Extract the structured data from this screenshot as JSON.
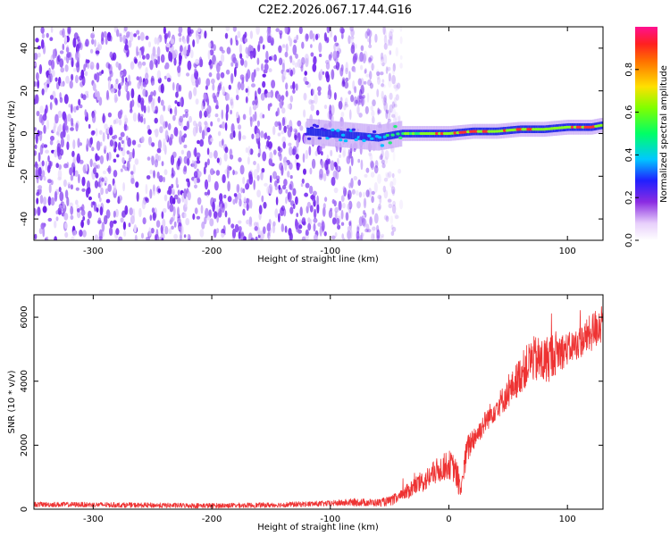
{
  "title": "C2E2.2026.067.17.44.G16",
  "colors": {
    "snr_line": "#ee3333",
    "axis": "#000000",
    "spectrogram_scatter": "#7a30f0",
    "spectrogram_band_core": "#33ee66",
    "spectrogram_band_peak": "#ff3333"
  },
  "chart_data": [
    {
      "type": "heatmap",
      "title": "",
      "xlabel": "Height of straight line (km)",
      "ylabel": "Frequency (Hz)",
      "xlim": [
        -350,
        130
      ],
      "ylim": [
        -50,
        50
      ],
      "x_ticks": [
        -300,
        -200,
        -100,
        0,
        100
      ],
      "x_tick_labels": [
        "-300",
        "-200",
        "-100",
        "0",
        "100"
      ],
      "y_ticks": [
        -40,
        -20,
        0,
        20,
        40
      ],
      "y_tick_labels": [
        "-40",
        "-20",
        "0",
        "20",
        "40"
      ],
      "noise_region_x": [
        -350,
        -50
      ],
      "signal_band": {
        "x": [
          -120,
          -100,
          -80,
          -60,
          -40,
          -20,
          0,
          20,
          40,
          60,
          80,
          100,
          120,
          130
        ],
        "frequency": [
          1,
          0,
          -1,
          -2,
          0,
          0,
          0,
          1,
          1,
          2,
          2,
          3,
          3,
          4
        ],
        "amplitude": [
          0.35,
          0.35,
          0.4,
          0.45,
          0.6,
          0.75,
          0.8,
          0.85,
          0.7,
          0.85,
          0.7,
          0.75,
          0.85,
          0.7
        ]
      },
      "colorbar": {
        "label": "Normalized spectral amplitude",
        "range": [
          0,
          1
        ],
        "ticks": [
          0.0,
          0.2,
          0.4,
          0.6,
          0.8
        ],
        "tick_labels": [
          "0.0",
          "0.2",
          "0.4",
          "0.6",
          "0.8"
        ]
      }
    },
    {
      "type": "line",
      "title": "",
      "xlabel": "Height of straight line (km)",
      "ylabel": "SNR (10 * v/v)",
      "xlim": [
        -350,
        130
      ],
      "ylim": [
        0,
        6700
      ],
      "x_ticks": [
        -300,
        -200,
        -100,
        0,
        100
      ],
      "x_tick_labels": [
        "-300",
        "-200",
        "-100",
        "0",
        "100"
      ],
      "y_ticks": [
        0,
        2000,
        4000,
        6000
      ],
      "y_tick_labels": [
        "0",
        "2000",
        "4000",
        "6000"
      ],
      "series": [
        {
          "name": "SNR",
          "x": [
            -350,
            -300,
            -250,
            -200,
            -150,
            -100,
            -80,
            -60,
            -50,
            -40,
            -30,
            -20,
            -10,
            0,
            5,
            10,
            15,
            20,
            25,
            30,
            40,
            50,
            60,
            70,
            80,
            90,
            100,
            110,
            120,
            130
          ],
          "y": [
            150,
            140,
            120,
            110,
            130,
            180,
            220,
            200,
            250,
            400,
            700,
            900,
            1200,
            1400,
            1250,
            600,
            1800,
            2200,
            2400,
            2700,
            3200,
            3600,
            4200,
            4700,
            4600,
            4900,
            5000,
            5200,
            5500,
            5900
          ],
          "noise_amplitude": [
            80,
            80,
            80,
            80,
            80,
            90,
            120,
            120,
            150,
            200,
            300,
            350,
            400,
            450,
            450,
            400,
            450,
            400,
            350,
            350,
            400,
            450,
            600,
            700,
            800,
            700,
            500,
            500,
            600,
            700
          ]
        }
      ]
    }
  ]
}
